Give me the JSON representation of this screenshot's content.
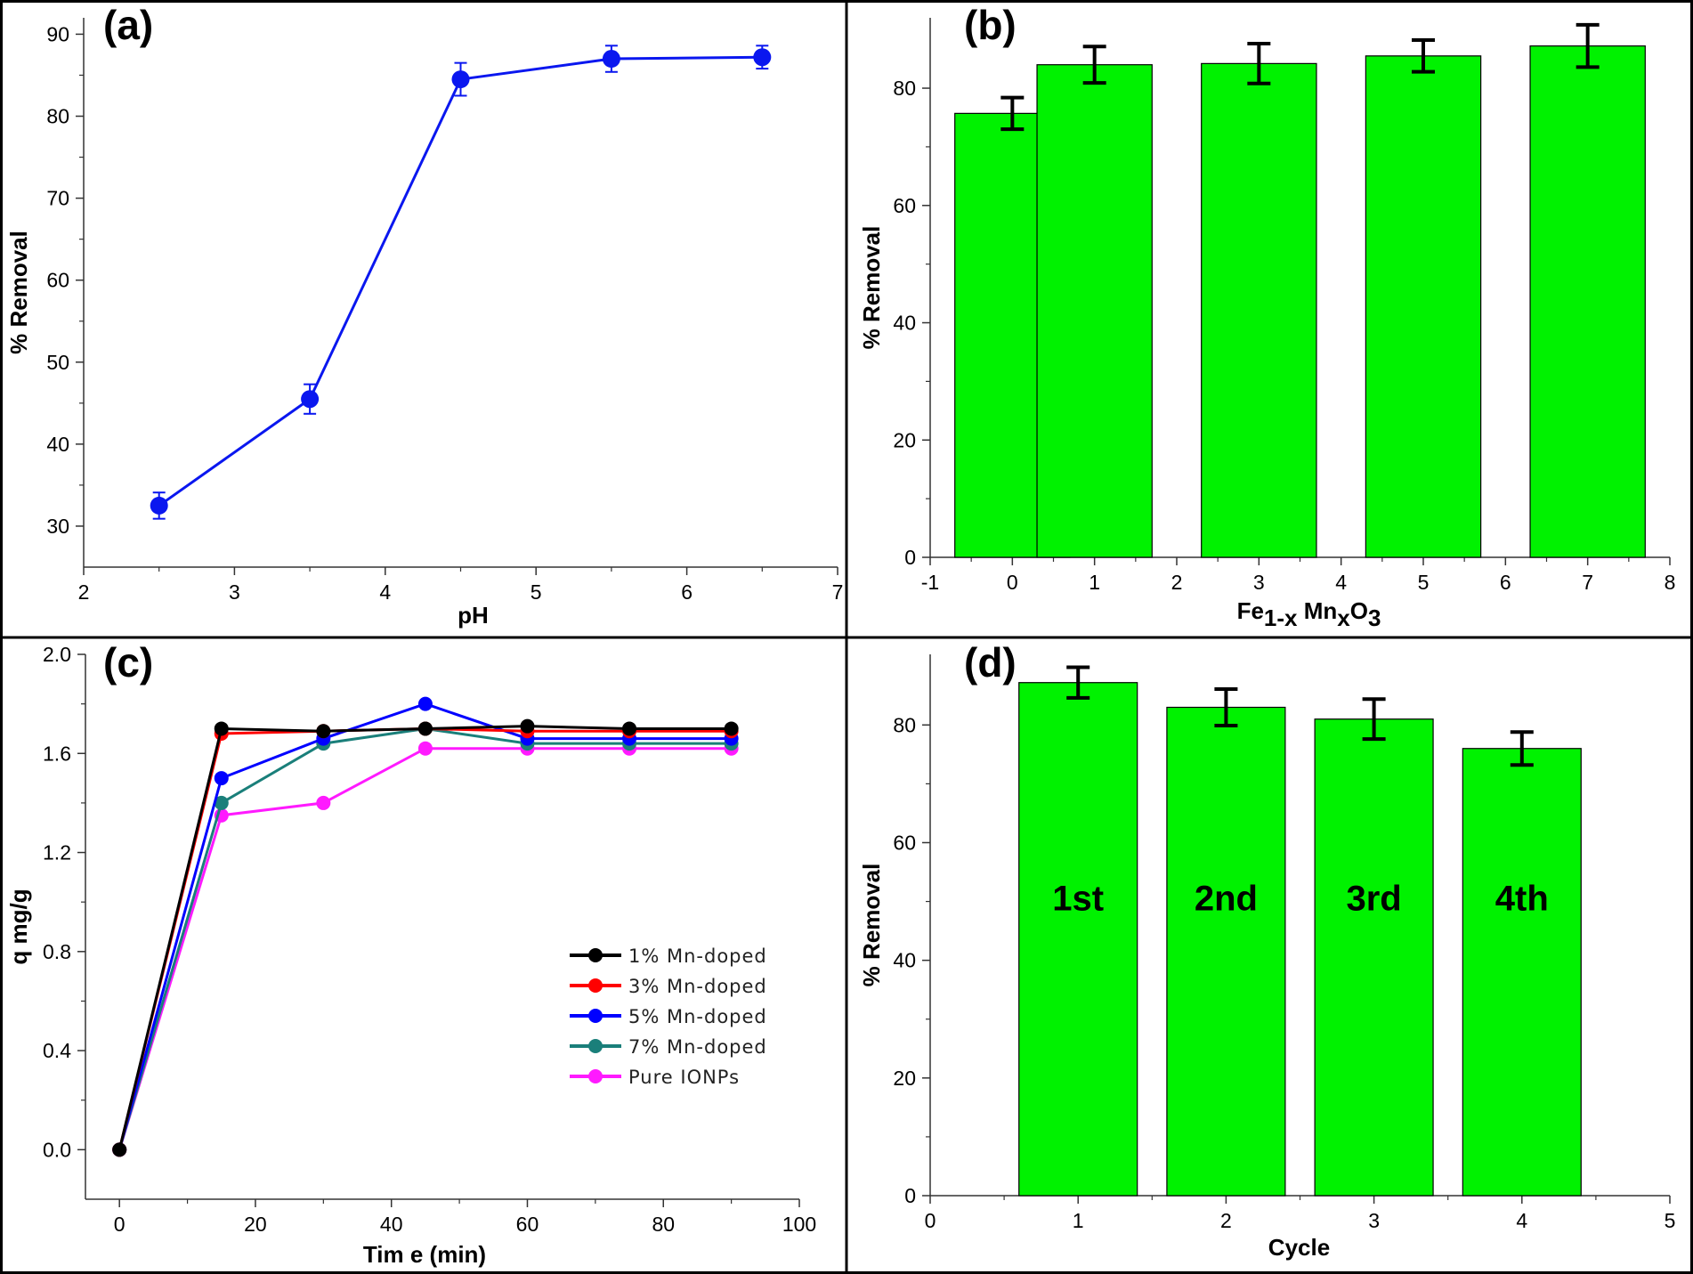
{
  "chart_data": [
    {
      "id": "a",
      "panel_label": "(a)",
      "type": "line",
      "xlabel": "pH",
      "ylabel": "% Removal",
      "xlim": [
        2,
        7
      ],
      "ylim": [
        25,
        92
      ],
      "xticks": [
        "2",
        "3",
        "4",
        "5",
        "6",
        "7"
      ],
      "yticks": [
        "30",
        "40",
        "50",
        "60",
        "70",
        "80",
        "90"
      ],
      "x": [
        2.5,
        3.5,
        4.5,
        5.5,
        6.5
      ],
      "y": [
        32.5,
        45.5,
        84.5,
        87.0,
        87.2
      ],
      "err": [
        1.6,
        1.8,
        2.0,
        1.6,
        1.4
      ],
      "color": "#0a17ef"
    },
    {
      "id": "b",
      "panel_label": "(b)",
      "type": "bar",
      "xlabel": "Fe",
      "xlabel_sub1": "1-x",
      "xlabel_mid": " Mn",
      "xlabel_sub2": "x",
      "xlabel_end": "O",
      "xlabel_sub3": "3",
      "ylabel": "% Removal",
      "xlim": [
        -1,
        8
      ],
      "ylim": [
        0,
        92
      ],
      "xticks": [
        "-1",
        "0",
        "1",
        "2",
        "3",
        "4",
        "5",
        "6",
        "7",
        "8"
      ],
      "yticks": [
        "0",
        "20",
        "40",
        "60",
        "80"
      ],
      "x": [
        0,
        1,
        3,
        5,
        7
      ],
      "values": [
        75.7,
        84.0,
        84.2,
        85.5,
        87.2
      ],
      "err": [
        2.7,
        3.1,
        3.4,
        2.7,
        3.6
      ],
      "bar_width": 1.4,
      "color": "#00f200"
    },
    {
      "id": "c",
      "panel_label": "(c)",
      "type": "line",
      "xlabel": "Tim e (min)",
      "ylabel": "q mg/g",
      "xlim": [
        -5,
        100
      ],
      "ylim": [
        -0.2,
        2.0
      ],
      "xticks": [
        "0",
        "20",
        "40",
        "60",
        "80",
        "100"
      ],
      "yticks": [
        "0.0",
        "0.4",
        "0.8",
        "1.2",
        "1.6",
        "2.0"
      ],
      "x": [
        0,
        15,
        30,
        45,
        60,
        75,
        90
      ],
      "series": [
        {
          "name": "1% Mn-doped",
          "color": "#000000",
          "values": [
            0,
            1.7,
            1.69,
            1.7,
            1.71,
            1.7,
            1.7
          ]
        },
        {
          "name": "3% Mn-doped",
          "color": "#ff0000",
          "values": [
            0,
            1.68,
            1.69,
            1.7,
            1.69,
            1.69,
            1.69
          ]
        },
        {
          "name": "5% Mn-doped",
          "color": "#0000ff",
          "values": [
            0,
            1.5,
            1.66,
            1.8,
            1.66,
            1.66,
            1.66
          ]
        },
        {
          "name": "7% Mn-doped",
          "color": "#1a7f7a",
          "values": [
            0,
            1.4,
            1.64,
            1.7,
            1.64,
            1.64,
            1.64
          ]
        },
        {
          "name": "Pure IONPs",
          "color": "#ff1aff",
          "values": [
            0,
            1.35,
            1.4,
            1.62,
            1.62,
            1.62,
            1.62
          ]
        }
      ],
      "legend_position": "center-right"
    },
    {
      "id": "d",
      "panel_label": "(d)",
      "type": "bar",
      "xlabel": "Cycle",
      "ylabel": "% Removal",
      "xlim": [
        0,
        5
      ],
      "ylim": [
        0,
        92
      ],
      "xticks": [
        "0",
        "1",
        "2",
        "3",
        "4",
        "5"
      ],
      "yticks": [
        "0",
        "20",
        "40",
        "60",
        "80"
      ],
      "x": [
        1,
        2,
        3,
        4
      ],
      "values": [
        87.2,
        83.0,
        81.0,
        76.0
      ],
      "err": [
        2.6,
        3.1,
        3.4,
        2.8
      ],
      "bar_labels": [
        "1st",
        "2nd",
        "3rd",
        "4th"
      ],
      "bar_width": 0.8,
      "color": "#00f200"
    }
  ]
}
